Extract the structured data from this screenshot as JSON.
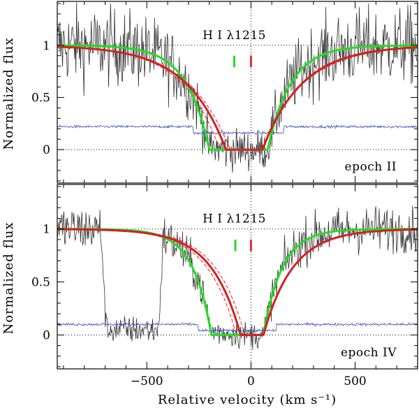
{
  "chart_data": {
    "type": "line",
    "xlabel": "Relative velocity (km s⁻¹)",
    "ylabel": "Normalized flux",
    "xlim": [
      -930,
      800
    ],
    "xticks": [
      -500,
      0,
      500
    ],
    "xtick_labels": [
      "−500",
      "0",
      "500"
    ],
    "colors": {
      "data": "#303030",
      "error": "#3a4cc0",
      "model_red": "#d42020",
      "model_green": "#22dd22",
      "marker_green": "#22dd22",
      "marker_red": "#e03030",
      "guide": "#000000"
    },
    "panels": [
      {
        "id": "epoch-ii",
        "ylim": [
          -0.32,
          1.42
        ],
        "yticks": [
          0,
          0.5,
          1
        ],
        "ytick_labels": [
          "0",
          "0.5",
          "1"
        ],
        "line_label": "H I λ1215",
        "epoch_label": "epoch  II",
        "error_level": 0.22,
        "red_model": {
          "v_left": -120,
          "v_right": 55,
          "width": 190
        },
        "red_model_dashed": [
          {
            "v_left": -150,
            "v_right": 60,
            "width": 180
          },
          {
            "v_left": -100,
            "v_right": 50,
            "width": 200
          }
        ],
        "green_model": {
          "v_left": -200,
          "v_right": 80,
          "width": 110
        },
        "markers": [
          {
            "v": -80,
            "color": "green"
          },
          {
            "v": 0,
            "color": "red"
          }
        ],
        "extra_absorption": []
      },
      {
        "id": "epoch-iv",
        "ylim": [
          -0.32,
          1.42
        ],
        "yticks": [
          0,
          0.5,
          1
        ],
        "ytick_labels": [
          "0",
          "0.5",
          "1"
        ],
        "line_label": "H I λ1215",
        "epoch_label": "epoch  IV",
        "error_level": 0.1,
        "red_model": {
          "v_left": -50,
          "v_right": 60,
          "width": 140
        },
        "red_model_dashed": [
          {
            "v_left": -70,
            "v_right": 60,
            "width": 140
          },
          {
            "v_left": -30,
            "v_right": 60,
            "width": 140
          }
        ],
        "green_model": {
          "v_left": -190,
          "v_right": 60,
          "width": 90
        },
        "markers": [
          {
            "v": -75,
            "color": "green"
          },
          {
            "v": 0,
            "color": "red"
          }
        ],
        "extra_absorption": [
          {
            "v_from": -720,
            "v_to": -420,
            "depth": 0.95
          }
        ]
      }
    ]
  }
}
